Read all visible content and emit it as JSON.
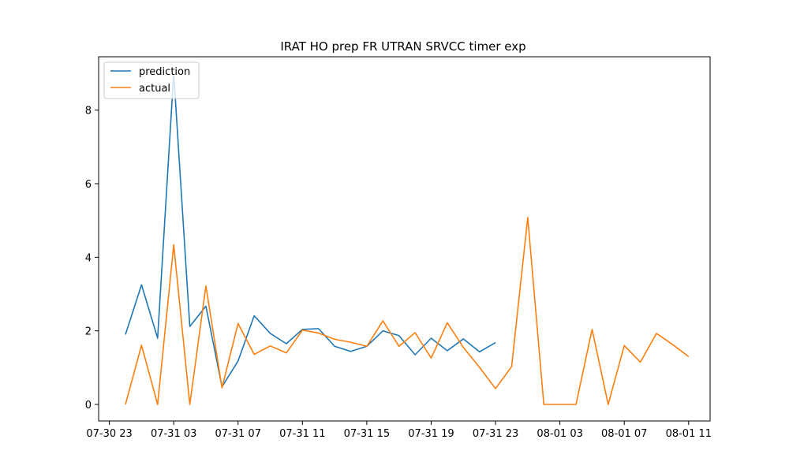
{
  "chart_data": {
    "type": "line",
    "title": "IRAT HO prep FR UTRAN SRVCC timer exp",
    "xlabel": "",
    "ylabel": "",
    "x_tick_labels": [
      "07-30 23",
      "07-31 03",
      "07-31 07",
      "07-31 11",
      "07-31 15",
      "07-31 19",
      "07-31 23",
      "08-01 03",
      "08-01 07",
      "08-01 11"
    ],
    "x_ticks": [
      "2024-07-30T23:00",
      "2024-07-31T03:00",
      "2024-07-31T07:00",
      "2024-07-31T11:00",
      "2024-07-31T15:00",
      "2024-07-31T19:00",
      "2024-07-31T23:00",
      "2024-08-01T03:00",
      "2024-08-01T07:00",
      "2024-08-01T11:00"
    ],
    "xlim": [
      "2024-07-30T22:20",
      "2024-08-01T12:20"
    ],
    "y_ticks": [
      0,
      2,
      4,
      6,
      8
    ],
    "ylim": [
      -0.45,
      9.45
    ],
    "grid": false,
    "legend_position": "upper left",
    "series": [
      {
        "name": "prediction",
        "color": "#1f77b4",
        "points": [
          [
            "2024-07-31T00:00",
            1.9
          ],
          [
            "2024-07-31T01:00",
            3.25
          ],
          [
            "2024-07-31T02:00",
            1.8
          ],
          [
            "2024-07-31T03:00",
            9.0
          ],
          [
            "2024-07-31T04:00",
            2.12
          ],
          [
            "2024-07-31T05:00",
            2.67
          ],
          [
            "2024-07-31T06:00",
            0.48
          ],
          [
            "2024-07-31T07:00",
            1.18
          ],
          [
            "2024-07-31T08:00",
            2.41
          ],
          [
            "2024-07-31T09:00",
            1.93
          ],
          [
            "2024-07-31T10:00",
            1.65
          ],
          [
            "2024-07-31T11:00",
            2.04
          ],
          [
            "2024-07-31T12:00",
            2.06
          ],
          [
            "2024-07-31T13:00",
            1.58
          ],
          [
            "2024-07-31T14:00",
            1.44
          ],
          [
            "2024-07-31T15:00",
            1.58
          ],
          [
            "2024-07-31T16:00",
            2.0
          ],
          [
            "2024-07-31T17:00",
            1.87
          ],
          [
            "2024-07-31T18:00",
            1.35
          ],
          [
            "2024-07-31T19:00",
            1.8
          ],
          [
            "2024-07-31T20:00",
            1.46
          ],
          [
            "2024-07-31T21:00",
            1.78
          ],
          [
            "2024-07-31T22:00",
            1.43
          ],
          [
            "2024-07-31T23:00",
            1.68
          ]
        ]
      },
      {
        "name": "actual",
        "color": "#ff7f0e",
        "points": [
          [
            "2024-07-31T00:00",
            0.0
          ],
          [
            "2024-07-31T01:00",
            1.61
          ],
          [
            "2024-07-31T02:00",
            0.0
          ],
          [
            "2024-07-31T03:00",
            4.34
          ],
          [
            "2024-07-31T04:00",
            0.0
          ],
          [
            "2024-07-31T05:00",
            3.22
          ],
          [
            "2024-07-31T06:00",
            0.45
          ],
          [
            "2024-07-31T07:00",
            2.2
          ],
          [
            "2024-07-31T08:00",
            1.36
          ],
          [
            "2024-07-31T09:00",
            1.59
          ],
          [
            "2024-07-31T10:00",
            1.4
          ],
          [
            "2024-07-31T11:00",
            2.02
          ],
          [
            "2024-07-31T12:00",
            1.94
          ],
          [
            "2024-07-31T13:00",
            1.77
          ],
          [
            "2024-07-31T14:00",
            1.69
          ],
          [
            "2024-07-31T15:00",
            1.58
          ],
          [
            "2024-07-31T16:00",
            2.27
          ],
          [
            "2024-07-31T17:00",
            1.58
          ],
          [
            "2024-07-31T18:00",
            1.95
          ],
          [
            "2024-07-31T19:00",
            1.26
          ],
          [
            "2024-07-31T20:00",
            2.22
          ],
          [
            "2024-07-31T21:00",
            1.55
          ],
          [
            "2024-07-31T22:00",
            1.01
          ],
          [
            "2024-07-31T23:00",
            0.43
          ],
          [
            "2024-08-01T00:00",
            1.03
          ],
          [
            "2024-08-01T01:00",
            5.08
          ],
          [
            "2024-08-01T02:00",
            0.0
          ],
          [
            "2024-08-01T03:00",
            0.0
          ],
          [
            "2024-08-01T04:00",
            0.0
          ],
          [
            "2024-08-01T05:00",
            2.04
          ],
          [
            "2024-08-01T06:00",
            0.0
          ],
          [
            "2024-08-01T07:00",
            1.6
          ],
          [
            "2024-08-01T08:00",
            1.15
          ],
          [
            "2024-08-01T09:00",
            1.93
          ],
          [
            "2024-08-01T10:00",
            1.63
          ],
          [
            "2024-08-01T11:00",
            1.3
          ]
        ]
      }
    ]
  }
}
